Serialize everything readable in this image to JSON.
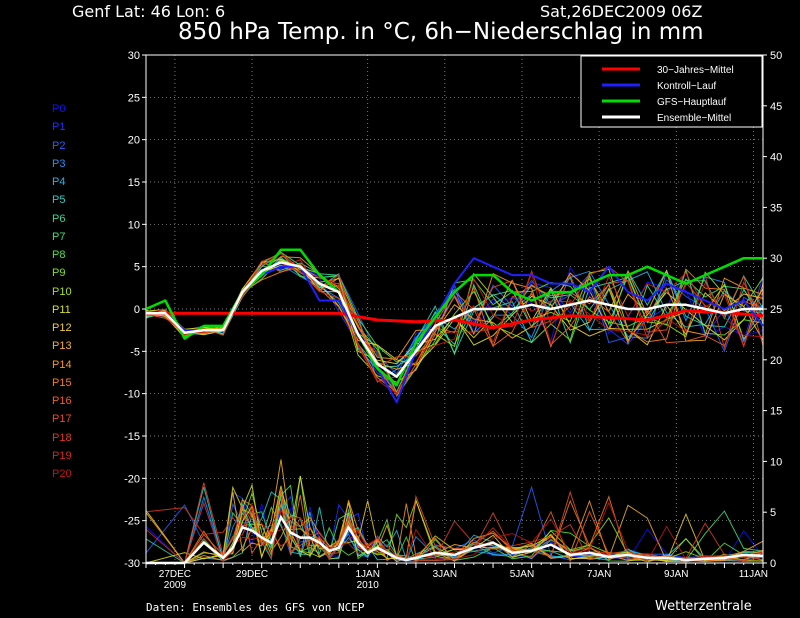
{
  "header": {
    "location": "Genf   Lat: 46  Lon: 6",
    "run": "Sat,26DEC2009  06Z",
    "title": "850 hPa Temp. in °C, 6h−Niederschlag in mm"
  },
  "footer": {
    "credit": "Daten: Ensembles des GFS von NCEP",
    "brand": "Wetterzentrale"
  },
  "members": [
    {
      "label": "P0",
      "color": "#1010ff"
    },
    {
      "label": "P1",
      "color": "#2030ff"
    },
    {
      "label": "P2",
      "color": "#2060ff"
    },
    {
      "label": "P3",
      "color": "#2090ff"
    },
    {
      "label": "P4",
      "color": "#20b8e8"
    },
    {
      "label": "P5",
      "color": "#20d0c8"
    },
    {
      "label": "P6",
      "color": "#30d8a0"
    },
    {
      "label": "P7",
      "color": "#40e070"
    },
    {
      "label": "P8",
      "color": "#50e040"
    },
    {
      "label": "P9",
      "color": "#80e020"
    },
    {
      "label": "P10",
      "color": "#a8e010"
    },
    {
      "label": "P11",
      "color": "#d8e020"
    },
    {
      "label": "P12",
      "color": "#f0d020"
    },
    {
      "label": "P13",
      "color": "#f8b020"
    },
    {
      "label": "P14",
      "color": "#f89820"
    },
    {
      "label": "P15",
      "color": "#f87a20"
    },
    {
      "label": "P16",
      "color": "#f06020"
    },
    {
      "label": "P17",
      "color": "#e84c20"
    },
    {
      "label": "P18",
      "color": "#e03818"
    },
    {
      "label": "P19",
      "color": "#d02818"
    },
    {
      "label": "P20",
      "color": "#c01810"
    }
  ],
  "chart_data": {
    "type": "line",
    "title": "850 hPa Temp. in °C, 6h−Niederschlag in mm",
    "grid": true,
    "legend_position": "top-right",
    "y_left": {
      "min": -30,
      "max": 30,
      "ticks": [
        -30,
        -25,
        -20,
        -15,
        -10,
        -5,
        0,
        5,
        10,
        15,
        20,
        25,
        30
      ]
    },
    "y_right": {
      "min": 0,
      "max": 50,
      "ticks": [
        0,
        5,
        10,
        15,
        20,
        25,
        30,
        35,
        40,
        45,
        50
      ]
    },
    "x_range_days": [
      0,
      16
    ],
    "x_ticks": [
      {
        "day": 0.75,
        "line1": "27DEC",
        "line2": "2009"
      },
      {
        "day": 2.75,
        "line1": "29DEC",
        "line2": ""
      },
      {
        "day": 5.75,
        "line1": "1JAN",
        "line2": "2010"
      },
      {
        "day": 7.75,
        "line1": "3JAN",
        "line2": ""
      },
      {
        "day": 9.75,
        "line1": "5JAN",
        "line2": ""
      },
      {
        "day": 11.75,
        "line1": "7JAN",
        "line2": ""
      },
      {
        "day": 13.75,
        "line1": "9JAN",
        "line2": ""
      },
      {
        "day": 15.75,
        "line1": "11JAN",
        "line2": ""
      }
    ],
    "legend": [
      {
        "name": "30−Jahres−Mittel",
        "color": "#ff0000"
      },
      {
        "name": "Kontroll−Lauf",
        "color": "#2020ff"
      },
      {
        "name": "GFS−Hauptlauf",
        "color": "#00dd00"
      },
      {
        "name": "Ensemble−Mittel",
        "color": "#ffffff"
      }
    ],
    "series": [
      {
        "name": "30−Jahres−Mittel",
        "color": "#ff0000",
        "width": 3,
        "x": [
          0,
          2,
          4,
          5,
          6,
          7,
          8,
          9,
          10,
          11,
          12,
          13,
          14,
          15,
          16
        ],
        "y": [
          -0.5,
          -0.5,
          -0.5,
          -0.5,
          -1.3,
          -1.5,
          -1.3,
          -2.2,
          -1.3,
          -0.8,
          -1.0,
          -1.3,
          -0.2,
          -0.4,
          -0.8
        ]
      },
      {
        "name": "Kontroll−Lauf",
        "color": "#2020ff",
        "width": 2,
        "x": [
          0,
          0.5,
          1,
          1.5,
          2,
          2.5,
          3,
          3.5,
          4,
          4.5,
          5,
          5.5,
          6,
          6.5,
          7,
          7.5,
          8,
          8.5,
          9,
          9.5,
          10,
          10.5,
          11,
          11.5,
          12,
          12.5,
          13,
          13.5,
          14,
          14.5,
          15,
          15.5,
          16
        ],
        "y": [
          -0.5,
          -0.5,
          -2.5,
          -2.5,
          -2.5,
          2,
          4,
          5,
          5,
          1,
          1,
          -3,
          -7,
          -11,
          -5,
          -1,
          3,
          6,
          5,
          4,
          4,
          3,
          3,
          2,
          5,
          2,
          1,
          3,
          2,
          1,
          0,
          1,
          -2
        ]
      },
      {
        "name": "GFS−Hauptlauf",
        "color": "#00dd00",
        "width": 2.5,
        "x": [
          0,
          0.5,
          1,
          1.5,
          2,
          2.5,
          3,
          3.5,
          4,
          4.5,
          5,
          5.5,
          6,
          6.5,
          7,
          7.5,
          8,
          8.5,
          9,
          9.5,
          10,
          10.5,
          11,
          11.5,
          12,
          12.5,
          13,
          13.5,
          14,
          14.5,
          15,
          15.5,
          16
        ],
        "y": [
          0,
          1,
          -3.5,
          -2,
          -2,
          2,
          4,
          7,
          7,
          4,
          2,
          -3,
          -7,
          -9,
          -4,
          -1,
          2,
          4,
          4,
          2,
          1,
          2,
          2,
          3,
          4,
          4,
          5,
          4,
          3,
          4,
          5,
          6,
          6
        ]
      },
      {
        "name": "Ensemble−Mittel",
        "color": "#ffffff",
        "width": 2.5,
        "x": [
          0,
          0.5,
          1,
          1.5,
          2,
          2.5,
          3,
          3.5,
          4,
          4.5,
          5,
          5.5,
          6,
          6.5,
          7,
          7.5,
          8,
          8.5,
          9,
          9.5,
          10,
          10.5,
          11,
          11.5,
          12,
          12.5,
          13,
          13.5,
          14,
          14.5,
          15,
          15.5,
          16
        ],
        "y": [
          -0.5,
          -0.5,
          -2.8,
          -2.5,
          -2.5,
          2,
          4.5,
          5.5,
          5,
          3,
          2,
          -3,
          -6.5,
          -8,
          -5,
          -2,
          -1,
          0,
          0,
          0,
          0.5,
          0,
          0.5,
          1,
          0.5,
          0,
          0,
          0.5,
          0.5,
          0,
          -0.5,
          0,
          0
        ]
      }
    ],
    "precipitation": {
      "mean_x": [
        0,
        1,
        1.5,
        2,
        2.25,
        2.5,
        2.75,
        3,
        3.25,
        3.5,
        3.75,
        4,
        4.25,
        4.5,
        4.75,
        5,
        5.25,
        5.5,
        5.75,
        6,
        6.25,
        6.5,
        6.75,
        7,
        7.5,
        8,
        8.5,
        9,
        9.5,
        10,
        10.5,
        11,
        11.5,
        12,
        12.5,
        13,
        13.5,
        14,
        14.5,
        15,
        15.5,
        16
      ],
      "mean_y": [
        0,
        0,
        2.0,
        0.5,
        1.5,
        3.5,
        3.2,
        2.5,
        2.0,
        4.5,
        3.0,
        2.5,
        2.5,
        2.0,
        1.2,
        1.5,
        3.5,
        2.0,
        1.0,
        1.5,
        1.0,
        0.5,
        0.3,
        0.5,
        1.0,
        0.8,
        1.5,
        2.0,
        1.0,
        1.2,
        1.8,
        0.8,
        1.0,
        0.6,
        0.8,
        0.5,
        0.5,
        0.3,
        0.4,
        0.5,
        0.8,
        0.7
      ]
    }
  }
}
